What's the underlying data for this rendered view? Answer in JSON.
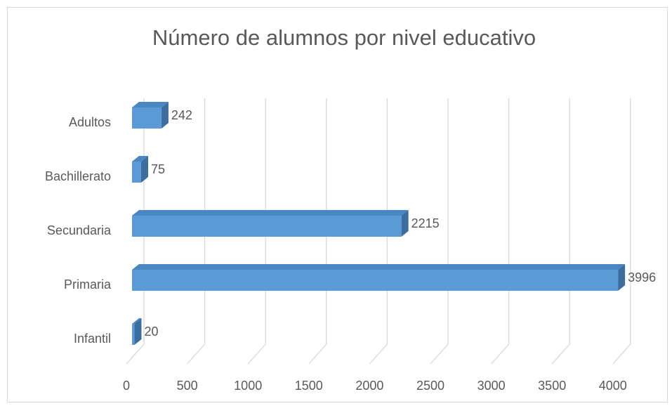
{
  "chart_data": {
    "type": "bar3d_horizontal",
    "title": "Número de alumnos por nivel educativo",
    "categories": [
      "Infantil",
      "Primaria",
      "Secundaria",
      "Bachillerato",
      "Adultos"
    ],
    "values": [
      20,
      3996,
      2215,
      75,
      242
    ],
    "color": "#5b9bd5",
    "xlim": [
      0,
      4000
    ],
    "xticks": [
      0,
      500,
      1000,
      1500,
      2000,
      2500,
      3000,
      3500,
      4000
    ],
    "grid": true
  }
}
